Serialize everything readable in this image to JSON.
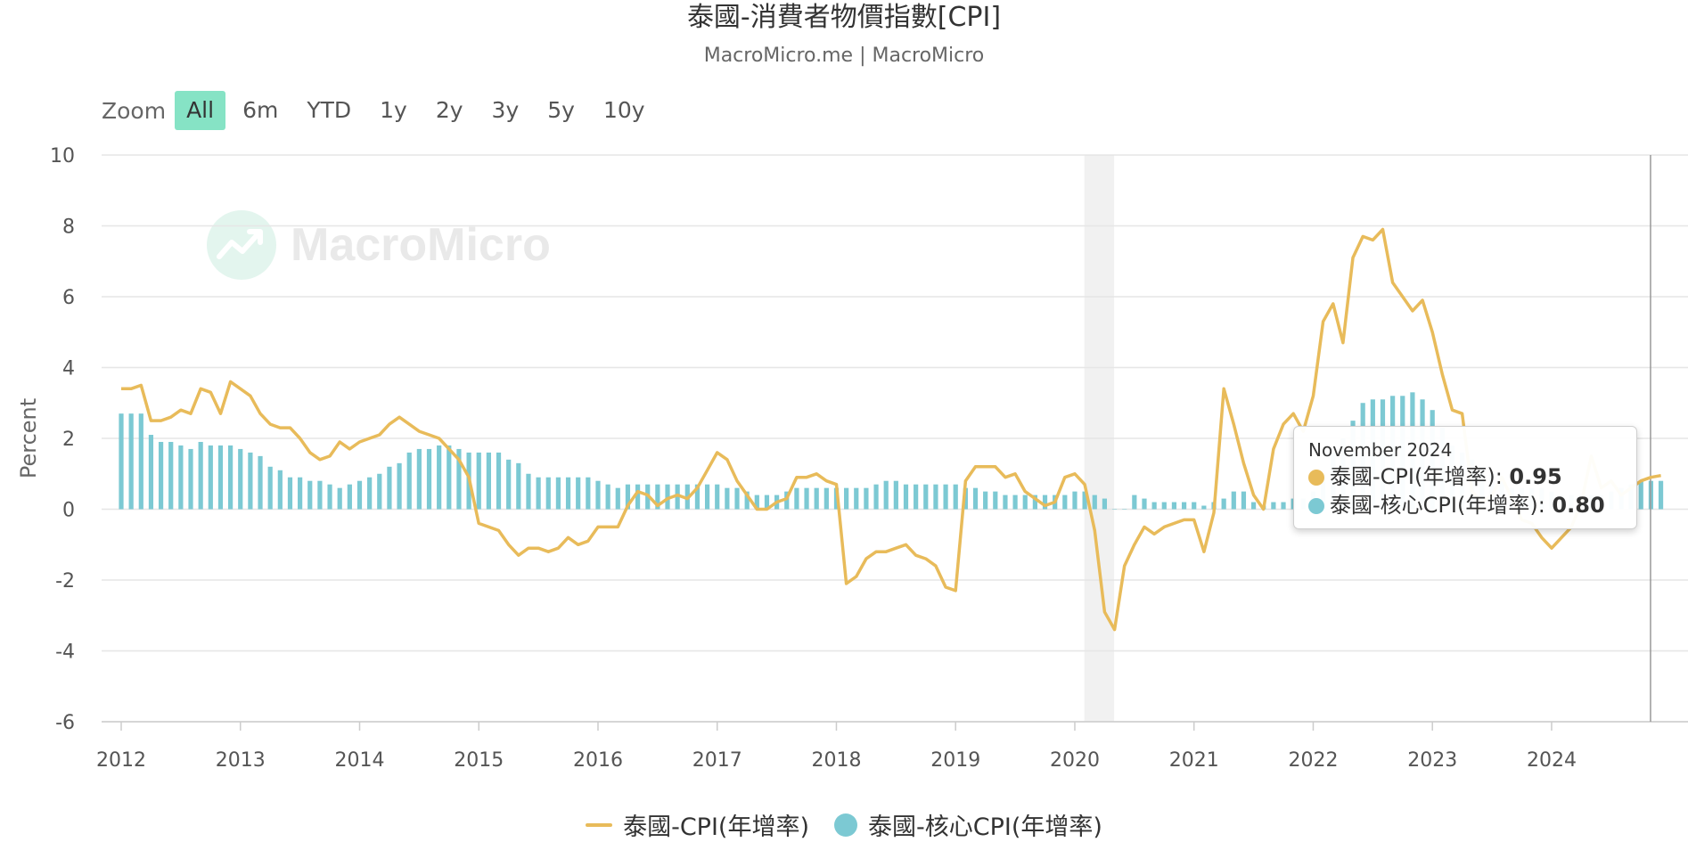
{
  "title": "泰國-消費者物價指數[CPI]",
  "subtitle": "MacroMicro.me | MacroMicro",
  "watermark": "MacroMicro",
  "zoom": {
    "label": "Zoom",
    "buttons": [
      "All",
      "6m",
      "YTD",
      "1y",
      "2y",
      "3y",
      "5y",
      "10y"
    ],
    "active": "All"
  },
  "tooltip": {
    "date": "November 2024",
    "rows": [
      {
        "label": "泰國-CPI(年增率): ",
        "value": "0.95"
      },
      {
        "label": "泰國-核心CPI(年增率): ",
        "value": "0.80"
      }
    ]
  },
  "colors": {
    "cpi": "#e8bb5a",
    "core": "#7cc9d3",
    "recession": "#f1f1f1",
    "grid": "#e6e6e6"
  },
  "chart_data": {
    "type": "bar",
    "ylabel": "Percent",
    "ylim": [
      -6,
      10
    ],
    "yticks": [
      -6,
      -4,
      -2,
      0,
      2,
      4,
      6,
      8,
      10
    ],
    "xlim": [
      2012.0,
      2024.92
    ],
    "xticks": [
      2012,
      2013,
      2014,
      2015,
      2016,
      2017,
      2018,
      2019,
      2020,
      2021,
      2022,
      2023,
      2024
    ],
    "grid": true,
    "legend": "bottom-center",
    "recession_band": [
      2020.08,
      2020.33
    ],
    "crosshair_x": 2024.83,
    "series": [
      {
        "name": "泰國-CPI(年增率)",
        "kind": "line",
        "start": "2012-01",
        "values": [
          3.4,
          3.4,
          3.5,
          2.5,
          2.5,
          2.6,
          2.8,
          2.7,
          3.4,
          3.3,
          2.7,
          3.6,
          3.4,
          3.2,
          2.7,
          2.4,
          2.3,
          2.3,
          2.0,
          1.6,
          1.4,
          1.5,
          1.9,
          1.7,
          1.9,
          2.0,
          2.1,
          2.4,
          2.6,
          2.4,
          2.2,
          2.1,
          2.0,
          1.7,
          1.4,
          0.9,
          -0.4,
          -0.5,
          -0.6,
          -1.0,
          -1.3,
          -1.1,
          -1.1,
          -1.2,
          -1.1,
          -0.8,
          -1.0,
          -0.9,
          -0.5,
          -0.5,
          -0.5,
          0.1,
          0.5,
          0.4,
          0.1,
          0.3,
          0.4,
          0.3,
          0.6,
          1.1,
          1.6,
          1.4,
          0.8,
          0.4,
          0.0,
          0.0,
          0.2,
          0.3,
          0.9,
          0.9,
          1.0,
          0.8,
          0.7,
          -2.1,
          -1.9,
          -1.4,
          -1.2,
          -1.2,
          -1.1,
          -1.0,
          -1.3,
          -1.4,
          -1.6,
          -2.2,
          -2.3,
          0.8,
          1.2,
          1.2,
          1.2,
          0.9,
          1.0,
          0.5,
          0.3,
          0.1,
          0.2,
          0.9,
          1.0,
          0.7,
          -0.6,
          -2.9,
          -3.4,
          -1.6,
          -1.0,
          -0.5,
          -0.7,
          -0.5,
          -0.4,
          -0.3,
          -0.3,
          -1.2,
          -0.1,
          3.4,
          2.4,
          1.3,
          0.4,
          0.0,
          1.7,
          2.4,
          2.7,
          2.2,
          3.2,
          5.3,
          5.8,
          4.7,
          7.1,
          7.7,
          7.6,
          7.9,
          6.4,
          6.0,
          5.6,
          5.9,
          5.0,
          3.8,
          2.8,
          2.7,
          0.5,
          0.2,
          0.4,
          0.9,
          0.3,
          -0.3,
          -0.4,
          -0.8,
          -1.1,
          -0.8,
          -0.5,
          0.2,
          1.5,
          0.6,
          0.8,
          0.4,
          0.6,
          0.8,
          0.9,
          0.95
        ]
      },
      {
        "name": "泰國-核心CPI(年增率)",
        "kind": "bar",
        "start": "2012-01",
        "values": [
          2.7,
          2.7,
          2.7,
          2.1,
          1.9,
          1.9,
          1.8,
          1.7,
          1.9,
          1.8,
          1.8,
          1.8,
          1.7,
          1.6,
          1.5,
          1.2,
          1.1,
          0.9,
          0.9,
          0.8,
          0.8,
          0.7,
          0.6,
          0.7,
          0.8,
          0.9,
          1.0,
          1.2,
          1.3,
          1.6,
          1.7,
          1.7,
          1.8,
          1.8,
          1.7,
          1.6,
          1.6,
          1.6,
          1.6,
          1.4,
          1.3,
          1.0,
          0.9,
          0.9,
          0.9,
          0.9,
          0.9,
          0.9,
          0.8,
          0.7,
          0.6,
          0.7,
          0.7,
          0.7,
          0.7,
          0.7,
          0.7,
          0.7,
          0.7,
          0.7,
          0.7,
          0.6,
          0.6,
          0.5,
          0.4,
          0.4,
          0.4,
          0.5,
          0.6,
          0.6,
          0.6,
          0.6,
          0.6,
          0.6,
          0.6,
          0.6,
          0.7,
          0.8,
          0.8,
          0.7,
          0.7,
          0.7,
          0.7,
          0.7,
          0.7,
          0.6,
          0.6,
          0.5,
          0.5,
          0.4,
          0.4,
          0.4,
          0.4,
          0.4,
          0.4,
          0.4,
          0.5,
          0.5,
          0.4,
          0.3,
          0.0,
          0.0,
          0.4,
          0.3,
          0.2,
          0.2,
          0.2,
          0.2,
          0.2,
          0.1,
          0.2,
          0.3,
          0.5,
          0.5,
          0.2,
          0.1,
          0.2,
          0.2,
          0.3,
          0.3,
          0.5,
          1.0,
          1.6,
          2.0,
          2.5,
          3.0,
          3.1,
          3.1,
          3.2,
          3.2,
          3.3,
          3.1,
          2.8,
          2.3,
          1.8,
          1.6,
          1.4,
          1.2,
          1.0,
          0.8,
          0.6,
          0.6,
          0.6,
          0.6,
          0.5,
          0.4,
          0.4,
          0.4,
          0.4,
          0.4,
          0.5,
          0.6,
          0.7,
          0.8,
          0.8,
          0.8
        ]
      }
    ]
  }
}
